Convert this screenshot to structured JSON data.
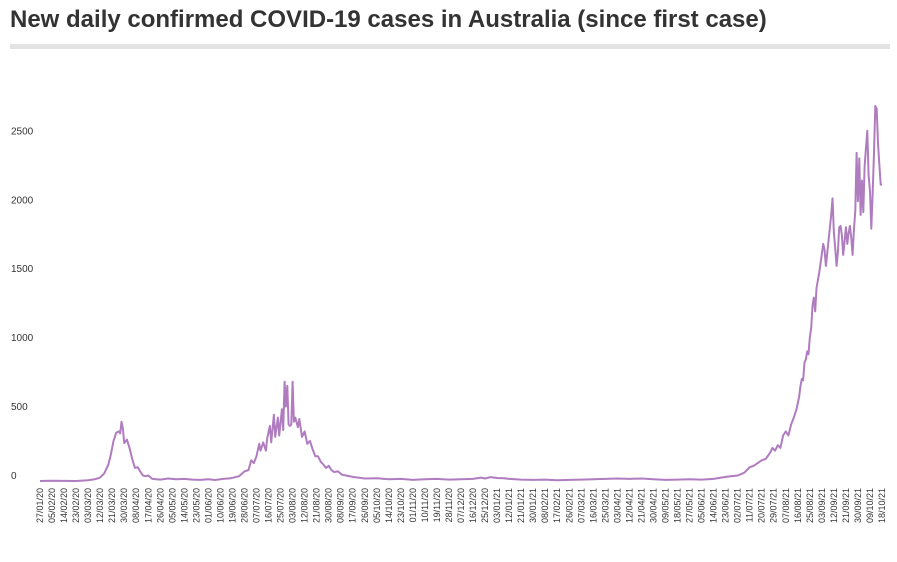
{
  "title": "New daily confirmed COVID-19 cases in Australia (since first case)",
  "colors": {
    "line": "#b07cc0",
    "title_rule": "#e3e3e3",
    "text": "#333333"
  },
  "chart_data": {
    "type": "line",
    "title": "New daily confirmed COVID-19 cases in Australia (since first case)",
    "xlabel": "",
    "ylabel": "",
    "x_start": "2020-01-27",
    "x_end": "2021-10-18",
    "ylim": [
      0,
      2800
    ],
    "y_ticks": [
      0,
      500,
      1000,
      1500,
      2000,
      2500
    ],
    "x_tick_labels": [
      "27/01/20",
      "05/02/20",
      "14/02/20",
      "23/02/20",
      "03/03/20",
      "12/03/20",
      "21/03/20",
      "30/03/20",
      "08/04/20",
      "17/04/20",
      "26/04/20",
      "05/05/20",
      "14/05/20",
      "23/05/20",
      "01/06/20",
      "10/06/20",
      "19/06/20",
      "28/06/20",
      "07/07/20",
      "16/07/20",
      "25/07/20",
      "03/08/20",
      "12/08/20",
      "21/08/20",
      "30/08/20",
      "08/09/20",
      "17/09/20",
      "26/09/20",
      "05/10/20",
      "14/10/20",
      "23/10/20",
      "01/11/20",
      "10/11/20",
      "19/11/20",
      "28/11/20",
      "07/12/20",
      "16/12/20",
      "25/12/20",
      "03/01/21",
      "12/01/21",
      "21/01/21",
      "30/01/21",
      "08/02/21",
      "17/02/21",
      "26/02/21",
      "07/03/21",
      "16/03/21",
      "25/03/21",
      "03/04/21",
      "12/04/21",
      "21/04/21",
      "30/04/21",
      "09/05/21",
      "18/05/21",
      "27/05/21",
      "05/06/21",
      "14/06/21",
      "23/06/21",
      "02/07/21",
      "11/07/21",
      "20/07/21",
      "29/07/21",
      "07/08/21",
      "16/08/21",
      "25/08/21",
      "03/09/21",
      "12/09/21",
      "21/09/21",
      "30/09/21",
      "09/10/21",
      "18/10/21"
    ],
    "series": [
      {
        "values": [
          [
            "2020-01-27",
            0
          ],
          [
            "2020-02-05",
            2
          ],
          [
            "2020-02-14",
            1
          ],
          [
            "2020-02-23",
            0
          ],
          [
            "2020-03-03",
            5
          ],
          [
            "2020-03-08",
            12
          ],
          [
            "2020-03-12",
            25
          ],
          [
            "2020-03-15",
            55
          ],
          [
            "2020-03-18",
            115
          ],
          [
            "2020-03-20",
            190
          ],
          [
            "2020-03-22",
            290
          ],
          [
            "2020-03-24",
            350
          ],
          [
            "2020-03-26",
            360
          ],
          [
            "2020-03-27",
            345
          ],
          [
            "2020-03-28",
            430
          ],
          [
            "2020-03-29",
            380
          ],
          [
            "2020-03-30",
            275
          ],
          [
            "2020-04-01",
            300
          ],
          [
            "2020-04-03",
            240
          ],
          [
            "2020-04-05",
            160
          ],
          [
            "2020-04-07",
            95
          ],
          [
            "2020-04-09",
            100
          ],
          [
            "2020-04-11",
            70
          ],
          [
            "2020-04-13",
            40
          ],
          [
            "2020-04-15",
            35
          ],
          [
            "2020-04-17",
            40
          ],
          [
            "2020-04-20",
            15
          ],
          [
            "2020-04-26",
            10
          ],
          [
            "2020-05-02",
            18
          ],
          [
            "2020-05-08",
            12
          ],
          [
            "2020-05-14",
            15
          ],
          [
            "2020-05-20",
            10
          ],
          [
            "2020-05-26",
            8
          ],
          [
            "2020-06-01",
            12
          ],
          [
            "2020-06-06",
            7
          ],
          [
            "2020-06-12",
            15
          ],
          [
            "2020-06-18",
            20
          ],
          [
            "2020-06-24",
            35
          ],
          [
            "2020-06-28",
            70
          ],
          [
            "2020-07-01",
            80
          ],
          [
            "2020-07-03",
            150
          ],
          [
            "2020-07-05",
            130
          ],
          [
            "2020-07-07",
            180
          ],
          [
            "2020-07-09",
            270
          ],
          [
            "2020-07-10",
            220
          ],
          [
            "2020-07-12",
            280
          ],
          [
            "2020-07-14",
            220
          ],
          [
            "2020-07-15",
            310
          ],
          [
            "2020-07-17",
            400
          ],
          [
            "2020-07-18",
            280
          ],
          [
            "2020-07-20",
            480
          ],
          [
            "2020-07-21",
            320
          ],
          [
            "2020-07-23",
            460
          ],
          [
            "2020-07-24",
            330
          ],
          [
            "2020-07-26",
            520
          ],
          [
            "2020-07-27",
            370
          ],
          [
            "2020-07-28",
            720
          ],
          [
            "2020-07-29",
            540
          ],
          [
            "2020-07-30",
            690
          ],
          [
            "2020-07-31",
            410
          ],
          [
            "2020-08-01",
            400
          ],
          [
            "2020-08-02",
            410
          ],
          [
            "2020-08-03",
            720
          ],
          [
            "2020-08-04",
            430
          ],
          [
            "2020-08-05",
            460
          ],
          [
            "2020-08-07",
            390
          ],
          [
            "2020-08-08",
            450
          ],
          [
            "2020-08-10",
            320
          ],
          [
            "2020-08-12",
            360
          ],
          [
            "2020-08-14",
            270
          ],
          [
            "2020-08-16",
            290
          ],
          [
            "2020-08-18",
            230
          ],
          [
            "2020-08-20",
            180
          ],
          [
            "2020-08-22",
            180
          ],
          [
            "2020-08-24",
            140
          ],
          [
            "2020-08-26",
            120
          ],
          [
            "2020-08-28",
            95
          ],
          [
            "2020-08-30",
            110
          ],
          [
            "2020-09-01",
            80
          ],
          [
            "2020-09-03",
            65
          ],
          [
            "2020-09-06",
            70
          ],
          [
            "2020-09-09",
            45
          ],
          [
            "2020-09-12",
            40
          ],
          [
            "2020-09-17",
            30
          ],
          [
            "2020-09-26",
            18
          ],
          [
            "2020-10-05",
            20
          ],
          [
            "2020-10-14",
            12
          ],
          [
            "2020-10-23",
            15
          ],
          [
            "2020-11-01",
            8
          ],
          [
            "2020-11-10",
            12
          ],
          [
            "2020-11-19",
            15
          ],
          [
            "2020-11-28",
            10
          ],
          [
            "2020-12-07",
            12
          ],
          [
            "2020-12-16",
            15
          ],
          [
            "2020-12-22",
            25
          ],
          [
            "2020-12-25",
            18
          ],
          [
            "2020-12-29",
            28
          ],
          [
            "2021-01-03",
            22
          ],
          [
            "2021-01-08",
            20
          ],
          [
            "2021-01-12",
            15
          ],
          [
            "2021-01-21",
            10
          ],
          [
            "2021-01-30",
            8
          ],
          [
            "2021-02-08",
            10
          ],
          [
            "2021-02-17",
            5
          ],
          [
            "2021-02-26",
            8
          ],
          [
            "2021-03-07",
            10
          ],
          [
            "2021-03-16",
            12
          ],
          [
            "2021-03-25",
            15
          ],
          [
            "2021-04-03",
            18
          ],
          [
            "2021-04-12",
            15
          ],
          [
            "2021-04-21",
            18
          ],
          [
            "2021-04-30",
            12
          ],
          [
            "2021-05-09",
            8
          ],
          [
            "2021-05-18",
            10
          ],
          [
            "2021-05-27",
            12
          ],
          [
            "2021-06-05",
            10
          ],
          [
            "2021-06-14",
            15
          ],
          [
            "2021-06-23",
            30
          ],
          [
            "2021-06-27",
            35
          ],
          [
            "2021-07-02",
            40
          ],
          [
            "2021-07-07",
            60
          ],
          [
            "2021-07-11",
            100
          ],
          [
            "2021-07-14",
            110
          ],
          [
            "2021-07-17",
            130
          ],
          [
            "2021-07-20",
            150
          ],
          [
            "2021-07-23",
            160
          ],
          [
            "2021-07-26",
            200
          ],
          [
            "2021-07-28",
            240
          ],
          [
            "2021-07-30",
            220
          ],
          [
            "2021-08-01",
            260
          ],
          [
            "2021-08-03",
            240
          ],
          [
            "2021-08-05",
            330
          ],
          [
            "2021-08-07",
            360
          ],
          [
            "2021-08-09",
            330
          ],
          [
            "2021-08-11",
            410
          ],
          [
            "2021-08-13",
            460
          ],
          [
            "2021-08-15",
            520
          ],
          [
            "2021-08-17",
            610
          ],
          [
            "2021-08-18",
            690
          ],
          [
            "2021-08-19",
            740
          ],
          [
            "2021-08-20",
            730
          ],
          [
            "2021-08-21",
            860
          ],
          [
            "2021-08-22",
            880
          ],
          [
            "2021-08-23",
            940
          ],
          [
            "2021-08-24",
            920
          ],
          [
            "2021-08-25",
            1040
          ],
          [
            "2021-08-26",
            1110
          ],
          [
            "2021-08-27",
            1270
          ],
          [
            "2021-08-28",
            1330
          ],
          [
            "2021-08-29",
            1230
          ],
          [
            "2021-08-30",
            1400
          ],
          [
            "2021-09-01",
            1510
          ],
          [
            "2021-09-03",
            1650
          ],
          [
            "2021-09-04",
            1720
          ],
          [
            "2021-09-05",
            1680
          ],
          [
            "2021-09-06",
            1560
          ],
          [
            "2021-09-07",
            1650
          ],
          [
            "2021-09-09",
            1840
          ],
          [
            "2021-09-10",
            1930
          ],
          [
            "2021-09-11",
            2050
          ],
          [
            "2021-09-12",
            1800
          ],
          [
            "2021-09-13",
            1690
          ],
          [
            "2021-09-14",
            1560
          ],
          [
            "2021-09-15",
            1660
          ],
          [
            "2021-09-16",
            1840
          ],
          [
            "2021-09-17",
            1850
          ],
          [
            "2021-09-18",
            1780
          ],
          [
            "2021-09-19",
            1640
          ],
          [
            "2021-09-20",
            1740
          ],
          [
            "2021-09-21",
            1840
          ],
          [
            "2021-09-22",
            1720
          ],
          [
            "2021-09-23",
            1800
          ],
          [
            "2021-09-24",
            1850
          ],
          [
            "2021-09-25",
            1760
          ],
          [
            "2021-09-26",
            1640
          ],
          [
            "2021-09-27",
            1820
          ],
          [
            "2021-09-28",
            1960
          ],
          [
            "2021-09-29",
            2380
          ],
          [
            "2021-09-30",
            2030
          ],
          [
            "2021-10-01",
            2340
          ],
          [
            "2021-10-02",
            1930
          ],
          [
            "2021-10-03",
            2180
          ],
          [
            "2021-10-04",
            1950
          ],
          [
            "2021-10-05",
            2280
          ],
          [
            "2021-10-06",
            2420
          ],
          [
            "2021-10-07",
            2540
          ],
          [
            "2021-10-08",
            2220
          ],
          [
            "2021-10-09",
            2100
          ],
          [
            "2021-10-10",
            1830
          ],
          [
            "2021-10-11",
            2080
          ],
          [
            "2021-10-12",
            2380
          ],
          [
            "2021-10-13",
            2720
          ],
          [
            "2021-10-14",
            2700
          ],
          [
            "2021-10-15",
            2450
          ],
          [
            "2021-10-16",
            2300
          ],
          [
            "2021-10-17",
            2150
          ],
          [
            "2021-10-18",
            2150
          ]
        ]
      }
    ],
    "grid": false,
    "legend": "none"
  }
}
